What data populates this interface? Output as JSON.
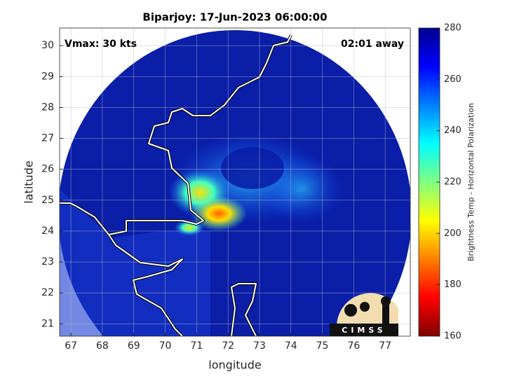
{
  "chart_data": {
    "type": "map",
    "title": "Biparjoy: 17-Jun-2023 06:00:00",
    "annotations": [
      "Vmax: 30 kts",
      "02:01 away"
    ],
    "xlabel": "longitude",
    "ylabel": "latitude",
    "xlim": [
      66.64,
      77.8
    ],
    "ylim": [
      20.6,
      30.57
    ],
    "xticks": [
      67,
      68,
      69,
      70,
      71,
      72,
      73,
      74,
      75,
      76,
      77
    ],
    "yticks": [
      21,
      22,
      23,
      24,
      25,
      26,
      27,
      28,
      29,
      30
    ],
    "grid": true,
    "colorbar": {
      "label": "Brightness Temp - Horizontal Polarization",
      "lim": [
        160,
        280
      ],
      "ticks": [
        160,
        180,
        200,
        220,
        240,
        260,
        280
      ],
      "colors": [
        "#800000",
        "#ff0000",
        "#ff8000",
        "#ffff00",
        "#80ff80",
        "#00ffff",
        "#0080ff",
        "#0000ff",
        "#00008f"
      ]
    },
    "logo": "CIMSS"
  }
}
